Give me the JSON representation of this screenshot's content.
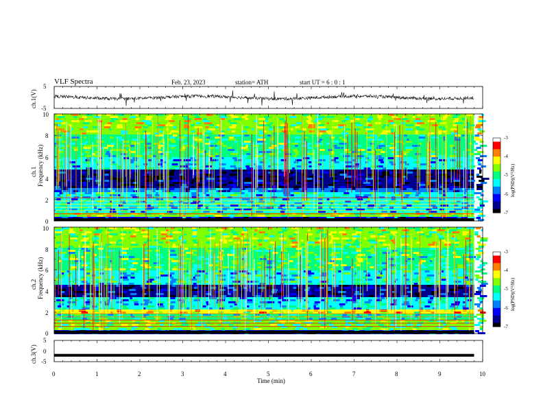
{
  "header": {
    "title": "VLF  Spectra",
    "date": "Feb. 23, 2023",
    "station": "station= ATH",
    "start": "start  UT  =   6  : 0   : 1"
  },
  "chart_data": [
    {
      "type": "line",
      "panel": "ch1-waveform",
      "ylabel": "ch.1(V)",
      "ylim": [
        -5,
        5
      ],
      "y_ticks": [
        "5",
        "-5"
      ],
      "xlim": [
        0,
        10
      ],
      "x_data_range": [
        0,
        9.8
      ],
      "baseline_level_V": 0,
      "color": "#000000"
    },
    {
      "type": "heatmap",
      "panel": "ch1-spectrogram",
      "ylabel": "ch.1\nFrequency  (kHz)",
      "ylabel_lines": [
        "ch.1",
        "Frequency  (kHz)"
      ],
      "y_ticks": [
        "0",
        "2",
        "4",
        "6",
        "8",
        "10"
      ],
      "ylim": [
        0,
        10
      ],
      "xlim": [
        0,
        10
      ],
      "x_data_range": [
        0,
        9.8
      ],
      "frequency_bands_kHz": [
        {
          "from": 0.0,
          "to": 0.3,
          "level": -6.2
        },
        {
          "from": 0.3,
          "to": 0.8,
          "level": -4.6
        },
        {
          "from": 0.8,
          "to": 1.6,
          "level": -5.6
        },
        {
          "from": 1.6,
          "to": 2.6,
          "level": -5.4
        },
        {
          "from": 2.6,
          "to": 3.0,
          "level": -6.0
        },
        {
          "from": 3.0,
          "to": 4.8,
          "level": -6.6
        },
        {
          "from": 4.8,
          "to": 6.0,
          "level": -5.6
        },
        {
          "from": 6.0,
          "to": 8.0,
          "level": -5.0
        },
        {
          "from": 8.0,
          "to": 10.0,
          "level": -4.6
        }
      ],
      "colorbar": {
        "label": "log(PSD)(V²/Hz)",
        "ticks": [
          "-3",
          "-4",
          "-5",
          "-6",
          "-7"
        ],
        "range": [
          -7,
          -3
        ]
      }
    },
    {
      "type": "heatmap",
      "panel": "ch2-spectrogram",
      "ylabel": "ch.2\nFrequency  (kHz)",
      "ylabel_lines": [
        "ch.2",
        "Frequency  (kHz)"
      ],
      "y_ticks": [
        "0",
        "2",
        "4",
        "6",
        "8",
        "10"
      ],
      "ylim": [
        0,
        10
      ],
      "xlim": [
        0,
        10
      ],
      "x_data_range": [
        0,
        9.8
      ],
      "frequency_bands_kHz": [
        {
          "from": 0.0,
          "to": 0.3,
          "level": -6.2
        },
        {
          "from": 0.3,
          "to": 1.2,
          "level": -4.8
        },
        {
          "from": 1.2,
          "to": 1.8,
          "level": -5.2
        },
        {
          "from": 1.8,
          "to": 2.2,
          "level": -4.2
        },
        {
          "from": 2.2,
          "to": 3.4,
          "level": -5.6
        },
        {
          "from": 3.4,
          "to": 4.6,
          "level": -6.4
        },
        {
          "from": 4.6,
          "to": 6.0,
          "level": -5.4
        },
        {
          "from": 6.0,
          "to": 8.0,
          "level": -5.0
        },
        {
          "from": 8.0,
          "to": 10.0,
          "level": -4.6
        }
      ],
      "colorbar": {
        "label": "log(PSD)(V²/Hz)",
        "ticks": [
          "-3",
          "-4",
          "-5",
          "-6",
          "-7"
        ],
        "range": [
          -7,
          -3
        ]
      }
    },
    {
      "type": "line",
      "panel": "ch3-waveform",
      "ylabel": "ch.3(V)",
      "ylim": [
        -5,
        5
      ],
      "y_ticks": [
        "5",
        "0",
        "-5"
      ],
      "xlim": [
        0,
        10
      ],
      "x_data_range": [
        0,
        9.8
      ],
      "baseline_level_V": -2,
      "color": "#000000"
    }
  ],
  "x_axis": {
    "label": "Time  (min)",
    "ticks": [
      "0",
      "1",
      "2",
      "3",
      "4",
      "5",
      "6",
      "7",
      "8",
      "9",
      "10"
    ]
  },
  "colors": {
    "colormap": [
      "#000000",
      "#00008b",
      "#0000ff",
      "#0080ff",
      "#00ffff",
      "#00ff80",
      "#80ff00",
      "#ffff00",
      "#ff8000",
      "#ff0000",
      "#ffffff"
    ]
  }
}
